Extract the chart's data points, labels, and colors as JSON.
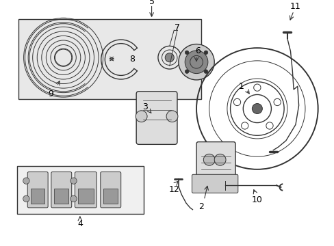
{
  "bg_color": "#ffffff",
  "box_fill": "#e8e8e8",
  "line_color": "#333333",
  "label_color": "#000000",
  "lw_thin": 0.7,
  "lw_med": 1.0,
  "lw_thick": 1.4,
  "label_fs": 9
}
